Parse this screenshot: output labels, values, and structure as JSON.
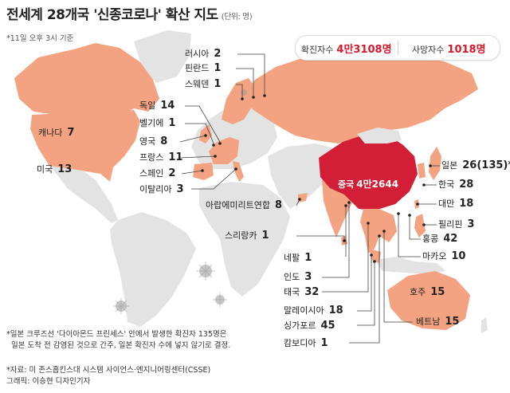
{
  "title": "전세계 28개국 '신종코로나' 확산 지도",
  "unit": "(단위: 명)",
  "time_note": "*11일 오후 3시 기준",
  "summary": {
    "confirmed_label": "확진자수",
    "confirmed_value": "4만3108명",
    "deaths_label": "사망자수",
    "deaths_value": "1018명"
  },
  "colors": {
    "affected": "#f3a381",
    "china": "#d21e36",
    "land": "#e3e3e3",
    "leader": "#444444"
  },
  "countries": [
    {
      "id": "russia",
      "name": "러시아",
      "count": "2"
    },
    {
      "id": "finland",
      "name": "핀란드",
      "count": "1"
    },
    {
      "id": "sweden",
      "name": "스웨덴",
      "count": "1"
    },
    {
      "id": "germany",
      "name": "독일",
      "count": "14"
    },
    {
      "id": "belgium",
      "name": "벨기에",
      "count": "1"
    },
    {
      "id": "uk",
      "name": "영국",
      "count": "8"
    },
    {
      "id": "france",
      "name": "프랑스",
      "count": "11"
    },
    {
      "id": "spain",
      "name": "스페인",
      "count": "2"
    },
    {
      "id": "italy",
      "name": "이탈리아",
      "count": "3"
    },
    {
      "id": "canada",
      "name": "캐나다",
      "count": "7"
    },
    {
      "id": "usa",
      "name": "미국",
      "count": "13"
    },
    {
      "id": "uae",
      "name": "아랍에미리트연합",
      "count": "8"
    },
    {
      "id": "srilanka",
      "name": "스리랑카",
      "count": "1"
    },
    {
      "id": "nepal",
      "name": "네팔",
      "count": "1"
    },
    {
      "id": "india",
      "name": "인도",
      "count": "3"
    },
    {
      "id": "thailand",
      "name": "태국",
      "count": "32"
    },
    {
      "id": "malaysia",
      "name": "말레이시아",
      "count": "18"
    },
    {
      "id": "singapore",
      "name": "싱가포르",
      "count": "45"
    },
    {
      "id": "cambodia",
      "name": "캄보디아",
      "count": "1"
    },
    {
      "id": "china",
      "name": "중국",
      "count": "4만2644"
    },
    {
      "id": "japan",
      "name": "일본",
      "count": "26(135)*"
    },
    {
      "id": "korea",
      "name": "한국",
      "count": "28"
    },
    {
      "id": "taiwan",
      "name": "대만",
      "count": "18"
    },
    {
      "id": "philippines",
      "name": "필리핀",
      "count": "3"
    },
    {
      "id": "hongkong",
      "name": "홍콩",
      "count": "42"
    },
    {
      "id": "macao",
      "name": "마카오",
      "count": "10"
    },
    {
      "id": "australia",
      "name": "호주",
      "count": "15"
    },
    {
      "id": "vietnam",
      "name": "베트남",
      "count": "15"
    }
  ],
  "footnote": [
    "*일본 크루즈선 '다이아몬드 프린세스' 안에서 발생한 확진자 135명은",
    "  일본 도착 전 감염된 것으로 간주, 일본 확진자 수에 넣지 않기로 결정."
  ],
  "source": "*자료: 미 존스홉킨스대 시스템 사이언스·엔지니어링센터(CSSE)",
  "credit": "그래픽: 이승현 디자인기자"
}
